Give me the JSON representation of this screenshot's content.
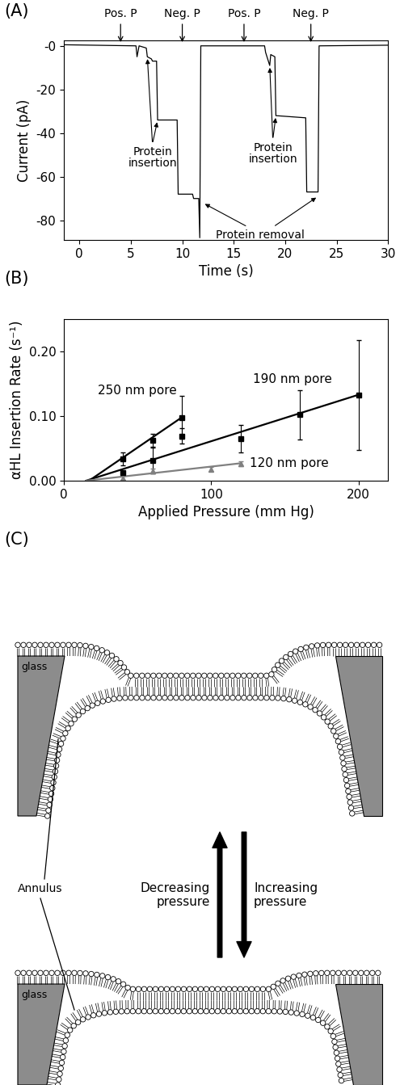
{
  "chart_data": [
    {
      "type": "line",
      "title": "(A)",
      "x_label": "Time (s)",
      "y_label": "Current (pA)",
      "x": [
        -1.5,
        5.5,
        5.6,
        5.8,
        6.5,
        6.6,
        7.0,
        7.1,
        7.5,
        7.6,
        9.5,
        9.6,
        11.0,
        11.1,
        11.6,
        11.7,
        11.8,
        18.0,
        18.1,
        18.5,
        18.6,
        19.0,
        19.1,
        22.0,
        22.1,
        23.2,
        23.3,
        30.0
      ],
      "values": [
        0.5,
        0,
        -5,
        0,
        -1,
        -5,
        -6,
        -7,
        -7,
        -34,
        -34,
        -68,
        -68,
        -70,
        -70,
        -88,
        0,
        0,
        -3,
        -9,
        -4,
        -5,
        -32,
        -33,
        -67,
        -67,
        0,
        0.3
      ],
      "color": "#000000",
      "xlim": [
        -1.5,
        30
      ],
      "xticks": [
        0,
        5,
        10,
        15,
        20,
        25,
        30
      ],
      "ylim": [
        -89,
        2.5
      ],
      "yticks": [
        {
          "value": 0,
          "label": "-0"
        },
        -20,
        -40,
        -60,
        -80
      ],
      "annotations": [
        {
          "text": "Pos. P",
          "x": 4
        },
        {
          "text": "Neg. P",
          "x": 10
        },
        {
          "text": "Pos. P",
          "x": 16
        },
        {
          "text": "Neg. P",
          "x": 22.5
        },
        {
          "text": "Protein\ninsertion",
          "points": [
            [
              6.6,
              -5
            ],
            [
              7.6,
              -34
            ]
          ]
        },
        {
          "text": "Protein\ninsertion",
          "points": [
            [
              18.5,
              -9
            ],
            [
              19.1,
              -32
            ]
          ]
        },
        {
          "text": "Protein removal",
          "points": [
            [
              12.0,
              -72
            ],
            [
              23.2,
              -69
            ]
          ]
        }
      ]
    },
    {
      "type": "scatter",
      "title": "(B)",
      "x_label": "Applied Pressure (mm Hg)",
      "y_label": "αHL Insertion Rate (s⁻¹)",
      "xlim": [
        0,
        220
      ],
      "xticks": [
        0,
        100,
        200
      ],
      "ylim": [
        0,
        0.25
      ],
      "yticks": [
        {
          "value": 0,
          "label": "0.00"
        },
        {
          "value": 0.1,
          "label": "0.10"
        },
        {
          "value": 0.2,
          "label": "0.20"
        }
      ],
      "series": [
        {
          "name": "250 nm pore",
          "color": "#000000",
          "marker": "square",
          "x": [
            40,
            60,
            80
          ],
          "values": [
            0.034,
            0.062,
            0.098
          ],
          "errors": [
            0.01,
            0.01,
            0.033
          ],
          "fit": {
            "x": [
              17,
              80
            ],
            "values": [
              0,
              0.098
            ]
          }
        },
        {
          "name": "190 nm pore",
          "color": "#000000",
          "marker": "square",
          "x": [
            40,
            60,
            80,
            120,
            160,
            200
          ],
          "values": [
            0.012,
            0.031,
            0.069,
            0.065,
            0.102,
            0.133
          ],
          "errors": [
            0.003,
            0.02,
            0.012,
            0.021,
            0.038,
            0.085
          ],
          "fit": {
            "x": [
              15,
              200
            ],
            "values": [
              0,
              0.133
            ]
          }
        },
        {
          "name": "120 nm pore",
          "color": "#808080",
          "marker": "triangle",
          "x": [
            40,
            60,
            100,
            120
          ],
          "values": [
            0.004,
            0.015,
            0.018,
            0.026
          ],
          "errors": [
            0.003,
            0.004,
            0.003,
            0.004
          ],
          "fit": {
            "x": [
              15,
              120
            ],
            "values": [
              0,
              0.027
            ]
          }
        }
      ]
    }
  ],
  "diagram": {
    "title": "(C)",
    "glass_labels": [
      "glass",
      "glass"
    ],
    "annulus_label": "Annulus",
    "arrows": [
      {
        "label": "Decreasing\npressure",
        "direction": "up"
      },
      {
        "label": "Increasing\npressure",
        "direction": "down"
      }
    ]
  }
}
